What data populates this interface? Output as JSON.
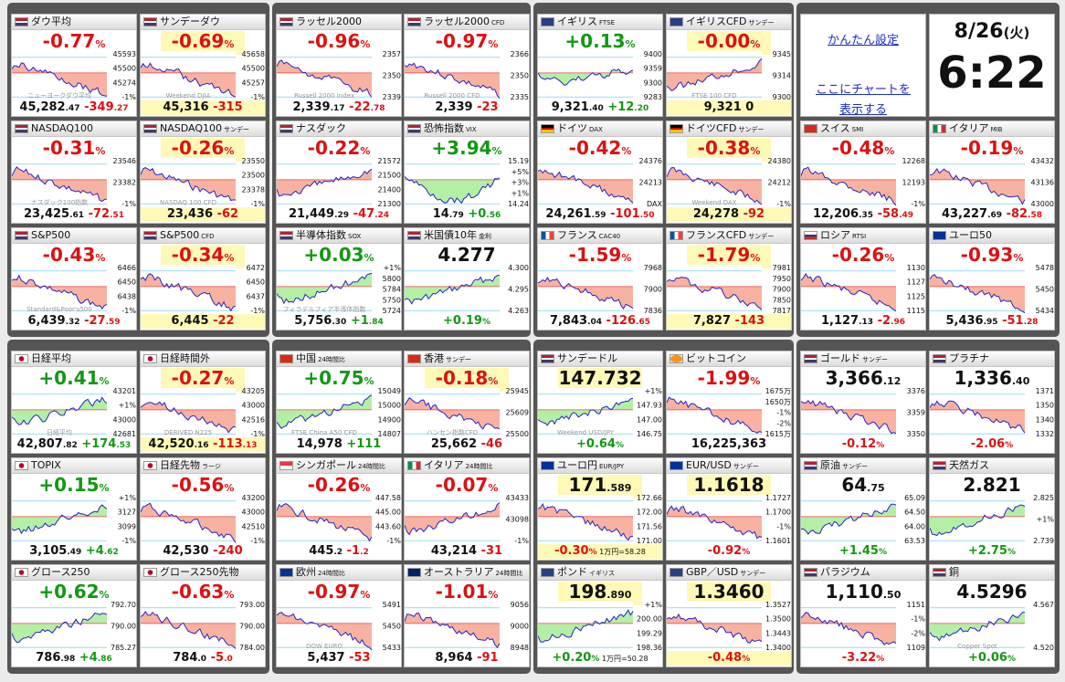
{
  "settings": {
    "easy_settings": "かんたん設定",
    "chart_here": "ここにチャートを",
    "show": "表示する"
  },
  "clock": {
    "date": "8/26",
    "weekday": "(火)",
    "time": "6:22"
  },
  "tiles": [
    {
      "name": "ダウ平均",
      "flag": "us",
      "big": "-0.77",
      "big_unit": "%",
      "dir": "down",
      "hl": false,
      "bot_main": "45,282",
      "bot_small": ".47",
      "chg_main": "-349",
      "chg_small": ".27",
      "axis": [
        "45593",
        "45500",
        "45274",
        "-1%"
      ],
      "wm": "ニューヨークダウ平均",
      "trend": "down"
    },
    {
      "name": "サンデーダウ",
      "flag": "us",
      "big": "-0.69",
      "big_unit": "%",
      "dir": "down",
      "hl": true,
      "bot_main": "45,316",
      "bot_small": "",
      "chg_main": "-315",
      "chg_small": "",
      "bot_hl": true,
      "axis": [
        "45658",
        "45500",
        "45257",
        "-1%"
      ],
      "wm": "Weekend DJIA",
      "trend": "down"
    },
    {
      "name": "ラッセル2000",
      "flag": "us",
      "big": "-0.96",
      "big_unit": "%",
      "dir": "down",
      "hl": false,
      "bot_main": "2,339",
      "bot_small": ".17",
      "chg_main": "-22",
      "chg_small": ".78",
      "axis": [
        "2357",
        "2350",
        "2339"
      ],
      "wm": "Russell 2000 Index",
      "trend": "down"
    },
    {
      "name": "ラッセル2000",
      "sub": "CFD",
      "flag": "us",
      "big": "-0.97",
      "big_unit": "%",
      "dir": "down",
      "hl": false,
      "bot_main": "2,339",
      "bot_small": "",
      "chg_main": "-23",
      "chg_small": "",
      "axis": [
        "2366",
        "2350",
        "2335"
      ],
      "wm": "Russell 2000 CFD",
      "trend": "down"
    },
    {
      "name": "イギリス",
      "sub": "FTSE",
      "flag": "uk",
      "big": "+0.13",
      "big_unit": "%",
      "dir": "up",
      "hl": false,
      "bot_main": "9,321",
      "bot_small": ".40",
      "chg_main": "+12",
      "chg_small": ".20",
      "axis": [
        "9400",
        "9359",
        "9300",
        "9283"
      ],
      "wm": "",
      "trend": "flat"
    },
    {
      "name": "イギリスCFD",
      "sub": "サンデー",
      "flag": "uk",
      "big": "-0.00",
      "big_unit": "%",
      "dir": "down",
      "hl": true,
      "bot_main": "9,321",
      "bot_small": "",
      "chg_main": "0",
      "chg_small": "",
      "bot_hl": true,
      "axis": [
        "9345",
        "9314",
        "9300"
      ],
      "wm": "FTSE 100 CFD",
      "trend": "up"
    },
    {
      "name": "NASDAQ100",
      "flag": "us",
      "big": "-0.31",
      "big_unit": "%",
      "dir": "down",
      "hl": false,
      "bot_main": "23,425",
      "bot_small": ".61",
      "chg_main": "-72",
      "chg_small": ".51",
      "axis": [
        "23546",
        "23382",
        "-1%"
      ],
      "wm": "ナスダック100指数",
      "trend": "down"
    },
    {
      "name": "NASDAQ100",
      "sub": "サンデー",
      "flag": "us",
      "big": "-0.26",
      "big_unit": "%",
      "dir": "down",
      "hl": true,
      "bot_main": "23,436",
      "bot_small": "",
      "chg_main": "-62",
      "chg_small": "",
      "bot_hl": true,
      "axis": [
        "23550",
        "23500",
        "23378",
        "-1%"
      ],
      "wm": "NASDAQ 100 CFD",
      "trend": "down"
    },
    {
      "name": "ナスダック",
      "flag": "us",
      "big": "-0.22",
      "big_unit": "%",
      "dir": "down",
      "hl": false,
      "bot_main": "21,449",
      "bot_small": ".29",
      "chg_main": "-47",
      "chg_small": ".24",
      "axis": [
        "21572",
        "21500",
        "21400",
        "21300"
      ],
      "wm": "",
      "trend": "up"
    },
    {
      "name": "恐怖指数",
      "sub": "VIX",
      "flag": "us",
      "big": "+3.94",
      "big_unit": "%",
      "dir": "up",
      "hl": false,
      "bot_main": "14",
      "bot_small": ".79",
      "chg_main": "+0",
      "chg_small": ".56",
      "axis": [
        "15.19",
        "+5%",
        "+3%",
        "+1%",
        "14.24"
      ],
      "wm": "",
      "trend": "vix"
    },
    {
      "name": "ドイツ",
      "sub": "DAX",
      "flag": "de",
      "big": "-0.42",
      "big_unit": "%",
      "dir": "down",
      "hl": false,
      "bot_main": "24,261",
      "bot_small": ".59",
      "chg_main": "-101",
      "chg_small": ".50",
      "axis": [
        "24376",
        "24213",
        "DAX"
      ],
      "wm": "",
      "trend": "down"
    },
    {
      "name": "ドイツCFD",
      "sub": "サンデー",
      "flag": "de",
      "big": "-0.38",
      "big_unit": "%",
      "dir": "down",
      "hl": true,
      "bot_main": "24,278",
      "bot_small": "",
      "chg_main": "-92",
      "chg_small": "",
      "bot_hl": true,
      "axis": [
        "24380",
        "24212",
        "-1%"
      ],
      "wm": "Weekend DAX",
      "trend": "down"
    },
    {
      "name": "スイス",
      "sub": "SMI",
      "flag": "ch",
      "big": "-0.48",
      "big_unit": "%",
      "dir": "down",
      "hl": false,
      "bot_main": "12,206",
      "bot_small": ".35",
      "chg_main": "-58",
      "chg_small": ".49",
      "axis": [
        "12268",
        "12193",
        "-1%"
      ],
      "wm": "",
      "trend": "down"
    },
    {
      "name": "イタリア",
      "sub": "MIB",
      "flag": "it",
      "big": "-0.19",
      "big_unit": "%",
      "dir": "down",
      "hl": false,
      "bot_main": "43,227",
      "bot_small": ".69",
      "chg_main": "-82",
      "chg_small": ".58",
      "axis": [
        "43432",
        "43136",
        "43000"
      ],
      "wm": "",
      "trend": "down"
    },
    {
      "name": "S&P500",
      "flag": "us",
      "big": "-0.43",
      "big_unit": "%",
      "dir": "down",
      "hl": false,
      "bot_main": "6,439",
      "bot_small": ".32",
      "chg_main": "-27",
      "chg_small": ".59",
      "axis": [
        "6466",
        "6450",
        "6438",
        "-1%"
      ],
      "wm": "Standard&Poor's500",
      "trend": "down"
    },
    {
      "name": "S&P500",
      "sub": "CFD",
      "flag": "us",
      "big": "-0.34",
      "big_unit": "%",
      "dir": "down",
      "hl": true,
      "bot_main": "6,445",
      "bot_small": "",
      "chg_main": "-22",
      "chg_small": "",
      "bot_hl": true,
      "axis": [
        "6472",
        "6450",
        "6437",
        "-1%"
      ],
      "wm": "",
      "trend": "down"
    },
    {
      "name": "半導体指数",
      "sub": "SOX",
      "flag": "us",
      "big": "+0.03",
      "big_unit": "%",
      "dir": "up",
      "hl": false,
      "bot_main": "5,756",
      "bot_small": ".30",
      "chg_main": "+1",
      "chg_small": ".84",
      "axis": [
        "+1%",
        "5800",
        "5784",
        "5750",
        "5724"
      ],
      "wm": "フィラデルフィア半導体指数",
      "trend": "up"
    },
    {
      "name": "米国債10年",
      "sub": "金利",
      "flag": "us",
      "big": "4.277",
      "big_unit": "",
      "dir": "k",
      "hl": false,
      "bot_main": "+0.19",
      "bot_small": "%",
      "chg_main": "",
      "chg_small": "",
      "bot_up": true,
      "axis": [
        "4.300",
        "4.295",
        "4.263"
      ],
      "wm": "",
      "trend": "up"
    },
    {
      "name": "フランス",
      "sub": "CAC40",
      "flag": "fr",
      "big": "-1.59",
      "big_unit": "%",
      "dir": "down",
      "hl": false,
      "bot_main": "7,843",
      "bot_small": ".04",
      "chg_main": "-126",
      "chg_small": ".65",
      "axis": [
        "7968",
        "7900",
        "7836"
      ],
      "wm": "",
      "trend": "down"
    },
    {
      "name": "フランスCFD",
      "sub": "サンデー",
      "flag": "fr",
      "big": "-1.79",
      "big_unit": "%",
      "dir": "down",
      "hl": true,
      "bot_main": "7,827",
      "bot_small": "",
      "chg_main": "-143",
      "chg_small": "",
      "bot_hl": true,
      "axis": [
        "7981",
        "7950",
        "7900",
        "7850",
        "7817"
      ],
      "wm": "",
      "trend": "down"
    },
    {
      "name": "ロシア",
      "sub": "RTSI",
      "flag": "ru",
      "big": "-0.26",
      "big_unit": "%",
      "dir": "down",
      "hl": false,
      "bot_main": "1,127",
      "bot_small": ".13",
      "chg_main": "-2",
      "chg_small": ".96",
      "axis": [
        "1130",
        "1127",
        "1125",
        "1115"
      ],
      "wm": "",
      "trend": "down"
    },
    {
      "name": "ユーロ50",
      "flag": "eu",
      "big": "-0.93",
      "big_unit": "%",
      "dir": "down",
      "hl": false,
      "bot_main": "5,436",
      "bot_small": ".95",
      "chg_main": "-51",
      "chg_small": ".28",
      "axis": [
        "5478",
        "5450",
        "5434"
      ],
      "wm": "",
      "trend": "down"
    },
    {
      "name": "日経平均",
      "flag": "jp",
      "big": "+0.41",
      "big_unit": "%",
      "dir": "up",
      "hl": false,
      "bot_main": "42,807",
      "bot_small": ".82",
      "chg_main": "+174",
      "chg_small": ".53",
      "axis": [
        "43201",
        "+1%",
        "43000",
        "42681"
      ],
      "wm": "日経平均",
      "trend": "up"
    },
    {
      "name": "日経時間外",
      "flag": "jp",
      "big": "-0.27",
      "big_unit": "%",
      "dir": "down",
      "hl": true,
      "bot_main": "42,520",
      "bot_small": ".16",
      "chg_main": "-113",
      "chg_small": ".13",
      "bot_hl": true,
      "axis": [
        "43205",
        "43000",
        "42516",
        "-1%"
      ],
      "wm": "DERIVED N225",
      "trend": "down"
    },
    {
      "name": "中国",
      "sub": "24時間比",
      "flag": "cn",
      "big": "+0.75",
      "big_unit": "%",
      "dir": "up",
      "hl": false,
      "bot_main": "14,978",
      "bot_small": "",
      "chg_main": "+111",
      "chg_small": "",
      "axis": [
        "15049",
        "15000",
        "14900",
        "14807"
      ],
      "wm": "FTSE China A50 CFD",
      "trend": "up"
    },
    {
      "name": "香港",
      "sub": "サンデー",
      "flag": "hk",
      "big": "-0.18",
      "big_unit": "%",
      "dir": "down",
      "hl": true,
      "bot_main": "25,662",
      "bot_small": "",
      "chg_main": "-46",
      "chg_small": "",
      "axis": [
        "25945",
        "25609",
        "25500"
      ],
      "wm": "ハンセン指数CFD",
      "trend": "down"
    },
    {
      "name": "サンデードル",
      "flag": "us",
      "big": "147.732",
      "big_unit": "",
      "dir": "k",
      "hl": true,
      "bot_main": "+0.64",
      "bot_small": "%",
      "chg_main": "",
      "chg_small": "",
      "bot_up": true,
      "axis": [
        "+1%",
        "147.93",
        "147.00",
        "146.75"
      ],
      "wm": "Weekend USD/JPY",
      "trend": "up"
    },
    {
      "name": "ビットコイン",
      "flag": "btc",
      "big": "-1.99",
      "big_unit": "%",
      "dir": "down",
      "hl": false,
      "bot_main": "16,225,363",
      "bot_small": "",
      "chg_main": "",
      "chg_small": "",
      "axis": [
        "1675万",
        "1650万",
        "-1%",
        "-2%",
        "1615万"
      ],
      "wm": "",
      "trend": "down"
    },
    {
      "name": "ゴールド",
      "sub": "サンデー",
      "flag": "us",
      "big": "3,366",
      "big_small": ".12",
      "big_unit": "",
      "dir": "k",
      "hl": false,
      "bot_main": "-0.12",
      "bot_small": "%",
      "chg_main": "",
      "chg_small": "",
      "bot_dn": true,
      "axis": [
        "3376",
        "3359",
        "3350"
      ],
      "wm": "",
      "trend": "down"
    },
    {
      "name": "プラチナ",
      "flag": "us",
      "big": "1,336",
      "big_small": ".40",
      "big_unit": "",
      "dir": "k",
      "hl": false,
      "bot_main": "-2.06",
      "bot_small": "%",
      "chg_main": "",
      "chg_small": "",
      "bot_dn": true,
      "axis": [
        "1371",
        "1350",
        "1340",
        "1332"
      ],
      "wm": "",
      "trend": "down"
    },
    {
      "name": "TOPIX",
      "flag": "jp",
      "big": "+0.15",
      "big_unit": "%",
      "dir": "up",
      "hl": false,
      "bot_main": "3,105",
      "bot_small": ".49",
      "chg_main": "+4",
      "chg_small": ".62",
      "axis": [
        "+1%",
        "3127",
        "3099",
        "-1%"
      ],
      "wm": "",
      "trend": "up"
    },
    {
      "name": "日経先物",
      "sub": "ラージ",
      "flag": "jp",
      "big": "-0.56",
      "big_unit": "%",
      "dir": "down",
      "hl": false,
      "bot_main": "42,530",
      "bot_small": "",
      "chg_main": "-240",
      "chg_small": "",
      "axis": [
        "43200",
        "43000",
        "42510",
        "-1%"
      ],
      "wm": "",
      "trend": "down"
    },
    {
      "name": "シンガポール",
      "sub": "24時間比",
      "flag": "sg",
      "big": "-0.26",
      "big_unit": "%",
      "dir": "down",
      "hl": false,
      "bot_main": "445",
      "bot_small": ".2",
      "chg_main": "-1",
      "chg_small": ".2",
      "axis": [
        "447.58",
        "445.00",
        "443.60",
        "-1%"
      ],
      "wm": "",
      "trend": "down"
    },
    {
      "name": "イタリア",
      "sub": "24時間比",
      "flag": "it",
      "big": "-0.07",
      "big_unit": "%",
      "dir": "down",
      "hl": false,
      "bot_main": "43,214",
      "bot_small": "",
      "chg_main": "-31",
      "chg_small": "",
      "axis": [
        "43433",
        "43098",
        "-1%"
      ],
      "wm": "",
      "trend": "up"
    },
    {
      "name": "ユーロ円",
      "sub": "EUR/JPY",
      "flag": "eu",
      "big": "171",
      "big_small": ".589",
      "big_unit": "",
      "dir": "k",
      "hl": true,
      "bot_main": "-0.30",
      "bot_small": "%",
      "chg_main": "",
      "chg_small": "",
      "bot_dn": true,
      "bot_extra": " 1万円=58.28",
      "bot_hl": true,
      "axis": [
        "172.66",
        "172.00",
        "171.56",
        "171.00"
      ],
      "wm": "",
      "trend": "down"
    },
    {
      "name": "EUR/USD",
      "sub": "サンデー",
      "flag": "eu",
      "big": "1.1618",
      "big_unit": "",
      "dir": "k",
      "hl": true,
      "bot_main": "-0.92",
      "bot_small": "%",
      "chg_main": "",
      "chg_small": "",
      "bot_dn": true,
      "axis": [
        "1.1727",
        "1.1700",
        "-1%",
        "1.1601"
      ],
      "wm": "",
      "trend": "down"
    },
    {
      "name": "原油",
      "sub": "サンデー",
      "flag": "us",
      "big": "64",
      "big_small": ".75",
      "big_unit": "",
      "dir": "k",
      "hl": false,
      "bot_main": "+1.45",
      "bot_small": "%",
      "chg_main": "",
      "chg_small": "",
      "bot_up": true,
      "axis": [
        "65.09",
        "64.50",
        "64.00",
        "63.53"
      ],
      "wm": "",
      "trend": "up"
    },
    {
      "name": "天然ガス",
      "flag": "us",
      "big": "2.821",
      "big_unit": "",
      "dir": "k",
      "hl": false,
      "bot_main": "+2.75",
      "bot_small": "%",
      "chg_main": "",
      "chg_small": "",
      "bot_up": true,
      "axis": [
        "2.825",
        "+1%",
        "2.739"
      ],
      "wm": "",
      "trend": "up"
    },
    {
      "name": "グロース250",
      "flag": "jp",
      "big": "+0.62",
      "big_unit": "%",
      "dir": "up",
      "hl": false,
      "bot_main": "786",
      "bot_small": ".98",
      "chg_main": "+4",
      "chg_small": ".86",
      "axis": [
        "792.70",
        "790.00",
        "785.27"
      ],
      "wm": "",
      "trend": "up"
    },
    {
      "name": "グロース250先物",
      "flag": "jp",
      "big": "-0.63",
      "big_unit": "%",
      "dir": "down",
      "hl": false,
      "bot_main": "784",
      "bot_small": ".0",
      "chg_main": "-5",
      "chg_small": ".0",
      "axis": [
        "793.00",
        "790.00",
        "784.00"
      ],
      "wm": "",
      "trend": "down"
    },
    {
      "name": "欧州",
      "sub": "24時間比",
      "flag": "eu",
      "big": "-0.97",
      "big_unit": "%",
      "dir": "down",
      "hl": false,
      "bot_main": "5,437",
      "bot_small": "",
      "chg_main": "-53",
      "chg_small": "",
      "axis": [
        "5491",
        "5450",
        "5433"
      ],
      "wm": "DOW EURO",
      "trend": "down"
    },
    {
      "name": "オーストラリア",
      "sub": "24時間比",
      "flag": "au",
      "big": "-1.01",
      "big_unit": "%",
      "dir": "down",
      "hl": false,
      "bot_main": "8,964",
      "bot_small": "",
      "chg_main": "-91",
      "chg_small": "",
      "axis": [
        "9056",
        "9000",
        "8948"
      ],
      "wm": "",
      "trend": "down"
    },
    {
      "name": "ポンド",
      "sub": "イギリス",
      "flag": "uk",
      "big": "198",
      "big_small": ".890",
      "big_unit": "",
      "dir": "k",
      "hl": true,
      "bot_main": "+0.20",
      "bot_small": "%",
      "chg_main": "",
      "chg_small": "",
      "bot_up": true,
      "bot_extra": " 1万円=50.28",
      "axis": [
        "+1%",
        "200.00",
        "199.29",
        "198.36"
      ],
      "wm": "",
      "trend": "up"
    },
    {
      "name": "GBP／USD",
      "sub": "サンデー",
      "flag": "uk",
      "big": "1.3460",
      "big_unit": "",
      "dir": "k",
      "hl": true,
      "bot_main": "-0.48",
      "bot_small": "%",
      "chg_main": "",
      "chg_small": "",
      "bot_dn": true,
      "bot_hl": true,
      "axis": [
        "1.3527",
        "1.3500",
        "1.3443",
        "1.3400"
      ],
      "wm": "",
      "trend": "down"
    },
    {
      "name": "パラジウム",
      "flag": "us",
      "big": "1,110",
      "big_small": ".50",
      "big_unit": "",
      "dir": "k",
      "hl": false,
      "bot_main": "-3.22",
      "bot_small": "%",
      "chg_main": "",
      "chg_small": "",
      "bot_dn": true,
      "axis": [
        "1151",
        "-1%",
        "-2%",
        "1109"
      ],
      "wm": "",
      "trend": "down"
    },
    {
      "name": "銅",
      "flag": "us",
      "big": "4.5296",
      "big_unit": "",
      "dir": "k",
      "hl": false,
      "bot_main": "+0.06",
      "bot_small": "%",
      "chg_main": "",
      "chg_small": "",
      "bot_up": true,
      "axis": [
        "4.567",
        "4.520"
      ],
      "wm": "Copper Spot",
      "trend": "up"
    }
  ],
  "colors": {
    "up": "#119911",
    "down": "#dd1111",
    "up_fill": "#a6ec95",
    "down_fill": "#f7a590",
    "highlight": "#fff9b8"
  }
}
